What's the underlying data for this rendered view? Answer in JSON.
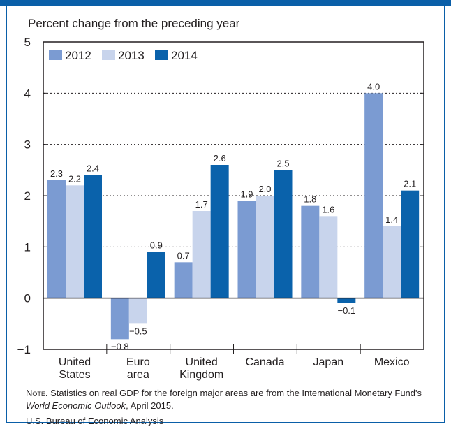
{
  "chart_data": {
    "type": "bar",
    "ylabel": "Percent change from the preceding year",
    "categories": [
      "United States",
      "Euro area",
      "United Kingdom",
      "Canada",
      "Japan",
      "Mexico"
    ],
    "category_lines": [
      [
        "United",
        "States"
      ],
      [
        "Euro",
        "area"
      ],
      [
        "United",
        "Kingdom"
      ],
      [
        "Canada"
      ],
      [
        "Japan"
      ],
      [
        "Mexico"
      ]
    ],
    "series": [
      {
        "name": "2012",
        "color": "#7b9bd2",
        "values": [
          2.3,
          -0.8,
          0.7,
          1.9,
          1.8,
          4.0
        ],
        "labels": [
          "2.3",
          "−0.8",
          "0.7",
          "1.9",
          "1.8",
          "4.0"
        ]
      },
      {
        "name": "2013",
        "color": "#c8d4ec",
        "values": [
          2.2,
          -0.5,
          1.7,
          2.0,
          1.6,
          1.4
        ],
        "labels": [
          "2.2",
          "−0.5",
          "1.7",
          "2.0",
          "1.6",
          "1.4"
        ]
      },
      {
        "name": "2014",
        "color": "#0a62ab",
        "values": [
          2.4,
          0.9,
          2.6,
          2.5,
          -0.1,
          2.1
        ],
        "labels": [
          "2.4",
          "0.9",
          "2.6",
          "2.5",
          "−0.1",
          "2.1"
        ]
      }
    ],
    "ylim": [
      -1,
      5
    ],
    "yticks": [
      -1,
      0,
      1,
      2,
      3,
      4,
      5
    ],
    "ytick_labels": [
      "−1",
      "0",
      "1",
      "2",
      "3",
      "4",
      "5"
    ],
    "grid": true,
    "legend_position": "top-left"
  },
  "note": {
    "prefix": "Note",
    "text1": ". Statistics on real GDP for the foreign major areas are from the International Monetary Fund's",
    "italic": "World Economic Outlook",
    "text2": ", April 2015."
  },
  "source": "U.S. Bureau of Economic Analysis",
  "colors": {
    "frame": "#0a5fa8",
    "axis": "#231f20",
    "grid": "#231f20"
  }
}
